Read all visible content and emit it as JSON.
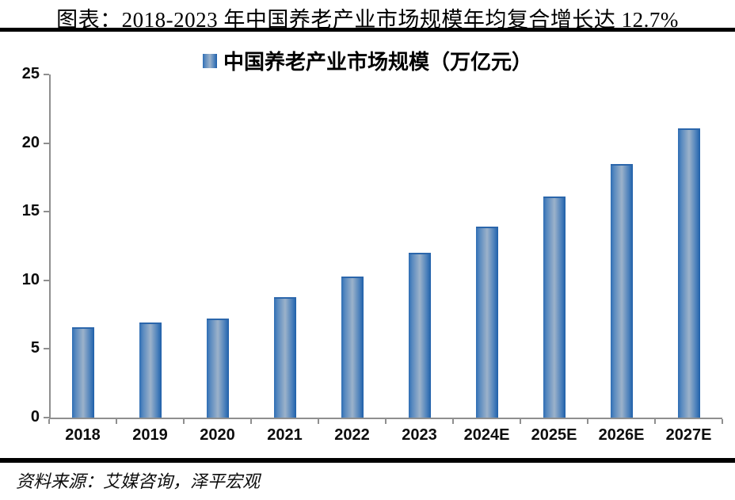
{
  "header": {
    "title": "图表：2018-2023 年中国养老产业市场规模年均复合增长达 12.7%"
  },
  "legend": {
    "label": "中国养老产业市场规模（万亿元）",
    "marker_icon": "gradient-blue-square"
  },
  "footer": {
    "source": "资料来源：艾媒咨询，泽平宏观"
  },
  "colors": {
    "bar_edge_left": "#2d6db4",
    "bar_center_light": "#9cb2ca",
    "bar_edge_right": "#1e5fa9",
    "axis": "#8f8f8f",
    "rule": "#000000",
    "text": "#000000"
  },
  "chart_data": {
    "type": "bar",
    "title": "中国养老产业市场规模（万亿元）",
    "categories": [
      "2018",
      "2019",
      "2020",
      "2021",
      "2022",
      "2023",
      "2024E",
      "2025E",
      "2026E",
      "2027E"
    ],
    "values": [
      6.6,
      6.9,
      7.2,
      8.8,
      10.3,
      12.0,
      13.9,
      16.1,
      18.5,
      21.1
    ],
    "xlabel": "",
    "ylabel": "",
    "ylim": [
      0,
      25
    ],
    "yticks": [
      0,
      5,
      10,
      15,
      20,
      25
    ],
    "grid": false,
    "legend_position": "top-center",
    "unit": "万亿元"
  }
}
